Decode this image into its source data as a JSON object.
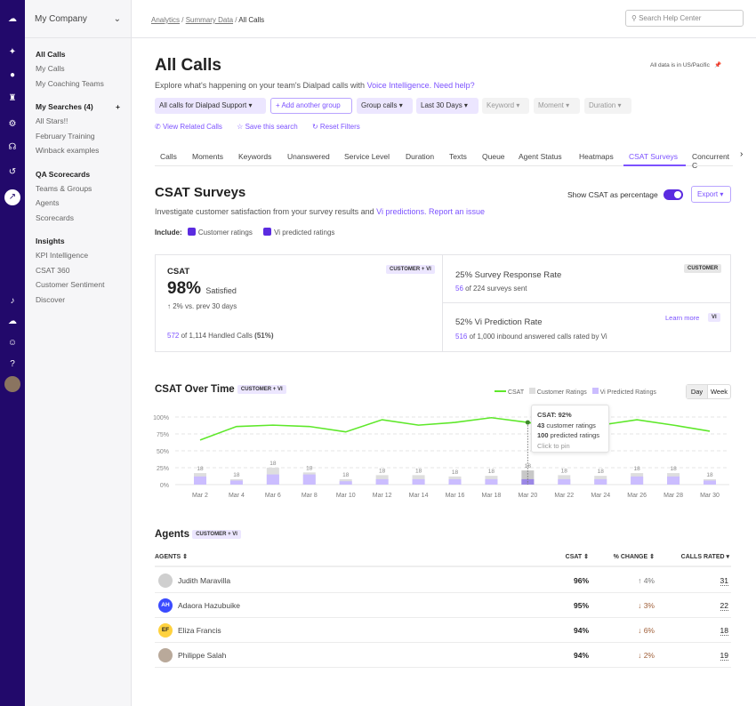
{
  "company": "My Company",
  "sidebar": {
    "sections": [
      {
        "title": "All Calls",
        "items": [
          "My Calls",
          "My Coaching Teams"
        ]
      },
      {
        "title": "My Searches (4)",
        "items": [
          "All Stars!!",
          "February Training",
          "Winback examples"
        ]
      },
      {
        "title": "QA Scorecards",
        "items": [
          "Teams & Groups",
          "Agents",
          "Scorecards"
        ]
      },
      {
        "title": "Insights",
        "items": [
          "KPI Intelligence",
          "CSAT 360",
          "Customer Sentiment",
          "Discover"
        ]
      }
    ]
  },
  "breadcrumb": [
    "Analytics",
    "Summary Data",
    "All Calls"
  ],
  "search_placeholder": "Search Help Center",
  "page": {
    "title": "All Calls",
    "timezone": "All data is in US/Pacific",
    "desc": "Explore what's happening on your team's Dialpad calls with ",
    "desc_link": "Voice Intelligence. Need help?"
  },
  "filters": [
    "All calls for Dialpad Support",
    "+ Add another group",
    "Group calls",
    "Last 30 Days",
    "Keyword",
    "Moment",
    "Duration"
  ],
  "actions": [
    "View Related Calls",
    "Save this search",
    "Reset Filters"
  ],
  "tabs": [
    "Calls",
    "Moments",
    "Keywords",
    "Unanswered",
    "Service Level",
    "Duration",
    "Texts",
    "Queue",
    "Agent Status",
    "Heatmaps",
    "CSAT Surveys",
    "Concurrent C"
  ],
  "active_tab": "CSAT Surveys",
  "csat": {
    "title": "CSAT Surveys",
    "toggle_label": "Show CSAT as percentage",
    "toggle_on": true,
    "export": "Export",
    "desc": "Investigate customer satisfaction from your survey results and ",
    "desc_link1": "Vi predictions.",
    "desc_link2": "Report an issue",
    "include": "Include:",
    "check1": "Customer ratings",
    "check2": "Vi predicted ratings"
  },
  "card_csat": {
    "label": "CSAT",
    "tag": "CUSTOMER + VI",
    "value": "98%",
    "value_suffix": "Satisfied",
    "change": "↑ 2% vs. prev 30 days",
    "handled_num": "572",
    "handled_text": " of 1,114 Handled Calls ",
    "handled_pct": "(51%)"
  },
  "card_survey": {
    "title": "25% Survey Response Rate",
    "tag": "CUSTOMER",
    "num": "56",
    "text": " of 224 surveys sent"
  },
  "card_vi": {
    "title": "52% Vi Prediction Rate",
    "learn": "Learn more",
    "tag": "VI",
    "num": "516",
    "text": " of 1,000 inbound answered calls rated by Vi"
  },
  "chart_title": "CSAT Over Time",
  "chart_tag": "CUSTOMER + VI",
  "day": "Day",
  "week": "Week",
  "chart_data": {
    "type": "line+bar",
    "categories": [
      "Mar 2",
      "Mar 4",
      "Mar 6",
      "Mar 8",
      "Mar 10",
      "Mar 12",
      "Mar 14",
      "Mar 16",
      "Mar 18",
      "Mar 20",
      "Mar 22",
      "Mar 24",
      "Mar 26",
      "Mar 28",
      "Mar 30"
    ],
    "yticks": [
      "100%",
      "75%",
      "50%",
      "25%",
      "0%"
    ],
    "ylim": [
      0,
      100
    ],
    "grid": true,
    "legend_position": "top-right",
    "series": [
      {
        "name": "CSAT",
        "type": "line",
        "color": "#5ee82a",
        "values": [
          66,
          86,
          88,
          86,
          78,
          96,
          88,
          92,
          99,
          92,
          84,
          88,
          96,
          88,
          79
        ]
      },
      {
        "name": "Customer Ratings",
        "type": "bar",
        "color": "#dedede",
        "values": [
          17,
          8,
          25,
          18,
          8,
          14,
          14,
          12,
          13,
          21,
          14,
          13,
          17,
          17,
          8
        ]
      },
      {
        "name": "Vi Predicted Ratings",
        "type": "bar",
        "color": "#cbbdff",
        "values": [
          12,
          6,
          15,
          15,
          5,
          8,
          8,
          8,
          8,
          8,
          8,
          8,
          12,
          12,
          6
        ]
      }
    ],
    "bar_labels": [
      "18",
      "18",
      "18",
      "18",
      "18",
      "18",
      "18",
      "18",
      "18",
      "18",
      "18",
      "18",
      "18",
      "18",
      "18"
    ],
    "tooltip": {
      "title": "CSAT: 92%",
      "n1": "43",
      "l1": " customer ratings",
      "n2": "100",
      "l2": " predicted ratings",
      "hint": "Click to pin"
    }
  },
  "agents": {
    "title": "Agents",
    "tag": "CUSTOMER + VI",
    "headers": [
      "AGENTS ⇕",
      "CSAT ⇕",
      "% CHANGE ⇕",
      "CALLS RATED ▾"
    ],
    "rows": [
      {
        "initials": "",
        "name": "Judith Maravilla",
        "csat": "96%",
        "change": "↑ 4%",
        "calls": "31",
        "bg": "#cfcfcf"
      },
      {
        "initials": "AH",
        "name": "Adaora Hazubuike",
        "csat": "95%",
        "change": "↓ 3%",
        "calls": "22",
        "bg": "#3b4bff"
      },
      {
        "initials": "EF",
        "name": "Eliza Francis",
        "csat": "94%",
        "change": "↓ 6%",
        "calls": "18",
        "bg": "#ffd23f"
      },
      {
        "initials": "",
        "name": "Philippe Salah",
        "csat": "94%",
        "change": "↓ 2%",
        "calls": "19",
        "bg": "#b9a99a"
      }
    ]
  }
}
